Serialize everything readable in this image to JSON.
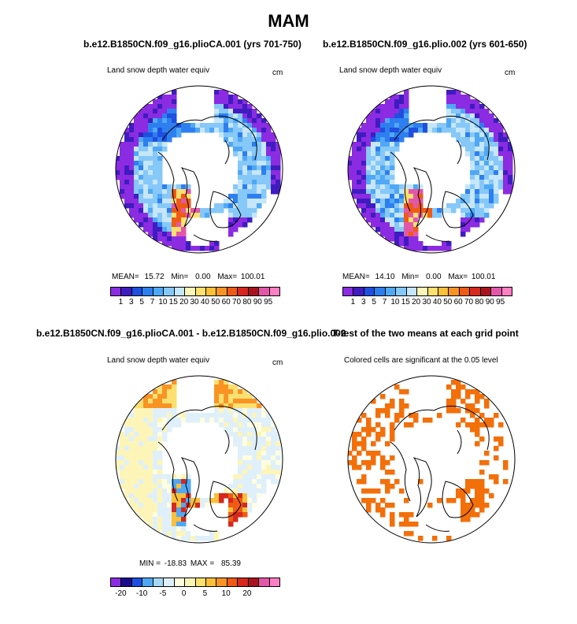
{
  "title": "MAM",
  "panels": {
    "case1": {
      "title": "b.e12.B1850CN.f09_g16.plioCA.001 (yrs 701-750)",
      "variable": "Land snow depth water equiv",
      "units": "cm",
      "mean_label": "MEAN=",
      "mean": "15.72",
      "min_label": "Min=",
      "min": "0.00",
      "max_label": "Max=",
      "max": "100.01"
    },
    "case2": {
      "title": "b.e12.B1850CN.f09_g16.plio.002 (yrs 601-650)",
      "variable": "Land snow depth water equiv",
      "units": "cm",
      "mean_label": "MEAN=",
      "mean": "14.10",
      "min_label": "Min=",
      "min": "0.00",
      "max_label": "Max=",
      "max": "100.01"
    },
    "diff": {
      "title": "b.e12.B1850CN.f09_g16.plioCA.001 - b.e12.B1850CN.f09_g16.plio.002",
      "variable": "Land snow depth water equiv",
      "units": "cm",
      "min_label": "MIN =",
      "min": "-18.83",
      "max_label": "MAX =",
      "max": "85.39"
    },
    "ttest": {
      "title": "T-test of the two means at each grid point",
      "subtitle": "Colored cells are significant at the 0.05 level",
      "color": "#f36f0a"
    }
  },
  "chart_data": [
    {
      "type": "heatmap",
      "title": "b.e12.B1850CN.f09_g16.plioCA.001 (yrs 701-750)",
      "projection": "north polar stereographic",
      "variable": "Land snow depth water equiv",
      "units": "cm",
      "summary": {
        "mean": 15.72,
        "min": 0.0,
        "max": 100.01
      },
      "colorbar_levels": [
        1,
        3,
        5,
        7,
        10,
        15,
        20,
        30,
        40,
        50,
        60,
        70,
        80,
        90,
        95
      ]
    },
    {
      "type": "heatmap",
      "title": "b.e12.B1850CN.f09_g16.plio.002 (yrs 601-650)",
      "projection": "north polar stereographic",
      "variable": "Land snow depth water equiv",
      "units": "cm",
      "summary": {
        "mean": 14.1,
        "min": 0.0,
        "max": 100.01
      },
      "colorbar_levels": [
        1,
        3,
        5,
        7,
        10,
        15,
        20,
        30,
        40,
        50,
        60,
        70,
        80,
        90,
        95
      ]
    },
    {
      "type": "heatmap",
      "title": "b.e12.B1850CN.f09_g16.plioCA.001 - b.e12.B1850CN.f09_g16.plio.002",
      "projection": "north polar stereographic",
      "variable": "Land snow depth water equiv",
      "units": "cm",
      "summary": {
        "min": -18.83,
        "max": 85.39
      },
      "colorbar_tick_labels": [
        "-20",
        "-10",
        "-5",
        "0",
        "5",
        "10",
        "20"
      ]
    },
    {
      "type": "heatmap",
      "title": "T-test of the two means at each grid point",
      "subtitle": "Colored cells are significant at the 0.05 level",
      "projection": "north polar stereographic",
      "significance_level": 0.05
    }
  ],
  "colorbars": {
    "abs": {
      "colors": [
        "#8b2be2",
        "#3f1cc0",
        "#1f4fdf",
        "#2d7ff0",
        "#4fa8f5",
        "#86c8f8",
        "#c6e6fa",
        "#fdf5b8",
        "#fde070",
        "#fbbf3a",
        "#f99424",
        "#ef5a14",
        "#d6281c",
        "#a8141e",
        "#e357a8",
        "#ff7fc4"
      ],
      "labels": [
        "1",
        "3",
        "5",
        "7",
        "10",
        "15",
        "20",
        "30",
        "40",
        "50",
        "60",
        "70",
        "80",
        "90",
        "95"
      ]
    },
    "diff": {
      "colors": [
        "#8b2be2",
        "#1a0a8c",
        "#1f4fdf",
        "#4fa8f5",
        "#a6d8f5",
        "#dff0fb",
        "#fffde0",
        "#fdf5b8",
        "#fde070",
        "#fbbf3a",
        "#f99424",
        "#ef5a14",
        "#d6281c",
        "#a8141e",
        "#e357a8",
        "#ff7fc4"
      ],
      "labels": [
        "-20",
        "-10",
        "-5",
        "0",
        "5",
        "10",
        "20"
      ]
    }
  }
}
